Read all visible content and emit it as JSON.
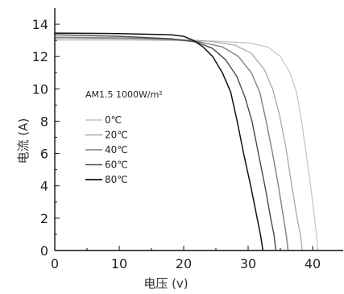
{
  "chart_data": {
    "type": "line",
    "title": "",
    "xlabel": "电压 (v)",
    "ylabel": "电流 (A)",
    "xlim": [
      0,
      45
    ],
    "ylim": [
      0,
      15
    ],
    "xticks": [
      0,
      10,
      20,
      30,
      40
    ],
    "yticks": [
      0,
      2,
      4,
      6,
      8,
      10,
      12,
      14
    ],
    "grid": false,
    "annotation": "AM1.5 1000W/m²",
    "legend_position": "left-middle",
    "series": [
      {
        "name": "0℃",
        "color": "#c4c4c4",
        "width": 1.2,
        "points": [
          [
            0,
            13.02
          ],
          [
            10,
            13.02
          ],
          [
            20,
            12.98
          ],
          [
            25,
            12.95
          ],
          [
            30,
            12.85
          ],
          [
            33,
            12.6
          ],
          [
            35,
            12.0
          ],
          [
            36.5,
            11.0
          ],
          [
            37.5,
            9.8
          ],
          [
            38.3,
            8.0
          ],
          [
            39,
            6.0
          ],
          [
            39.7,
            4.0
          ],
          [
            40.3,
            2.0
          ],
          [
            40.6,
            1.0
          ],
          [
            40.8,
            0
          ]
        ]
      },
      {
        "name": "20℃",
        "color": "#a8a8a8",
        "width": 1.3,
        "points": [
          [
            0,
            13.12
          ],
          [
            10,
            13.1
          ],
          [
            20,
            13.05
          ],
          [
            24,
            12.95
          ],
          [
            28,
            12.7
          ],
          [
            30.5,
            12.2
          ],
          [
            32.5,
            11.2
          ],
          [
            33.8,
            10.0
          ],
          [
            34.8,
            8.5
          ],
          [
            35.8,
            6.5
          ],
          [
            36.7,
            4.2
          ],
          [
            37.6,
            2.0
          ],
          [
            38.1,
            1.0
          ],
          [
            38.4,
            0
          ]
        ]
      },
      {
        "name": "40℃",
        "color": "#808080",
        "width": 1.4,
        "points": [
          [
            0,
            13.2
          ],
          [
            10,
            13.15
          ],
          [
            18,
            13.05
          ],
          [
            22,
            12.95
          ],
          [
            26,
            12.6
          ],
          [
            28.5,
            12.0
          ],
          [
            30.5,
            11.0
          ],
          [
            31.8,
            9.8
          ],
          [
            32.8,
            8.0
          ],
          [
            33.8,
            6.0
          ],
          [
            34.7,
            4.0
          ],
          [
            35.5,
            2.0
          ],
          [
            35.9,
            1.0
          ],
          [
            36.2,
            0
          ]
        ]
      },
      {
        "name": "60℃",
        "color": "#4a4a4a",
        "width": 1.4,
        "points": [
          [
            0,
            13.35
          ],
          [
            10,
            13.25
          ],
          [
            18,
            13.1
          ],
          [
            22,
            12.9
          ],
          [
            24.5,
            12.5
          ],
          [
            26.5,
            11.8
          ],
          [
            28.2,
            10.8
          ],
          [
            29.5,
            9.5
          ],
          [
            30.6,
            8.0
          ],
          [
            31.6,
            6.0
          ],
          [
            32.6,
            4.0
          ],
          [
            33.5,
            2.0
          ],
          [
            34.0,
            1.0
          ],
          [
            34.3,
            0
          ]
        ]
      },
      {
        "name": "80℃",
        "color": "#111111",
        "width": 1.5,
        "points": [
          [
            0,
            13.45
          ],
          [
            10,
            13.42
          ],
          [
            18,
            13.35
          ],
          [
            20,
            13.25
          ],
          [
            21.5,
            13.0
          ],
          [
            23,
            12.6
          ],
          [
            24.5,
            12.0
          ],
          [
            26,
            11.0
          ],
          [
            27.3,
            9.8
          ],
          [
            28.3,
            8.0
          ],
          [
            29.3,
            6.0
          ],
          [
            30.4,
            4.0
          ],
          [
            31.4,
            2.0
          ],
          [
            31.9,
            1.0
          ],
          [
            32.3,
            0
          ]
        ]
      }
    ]
  }
}
